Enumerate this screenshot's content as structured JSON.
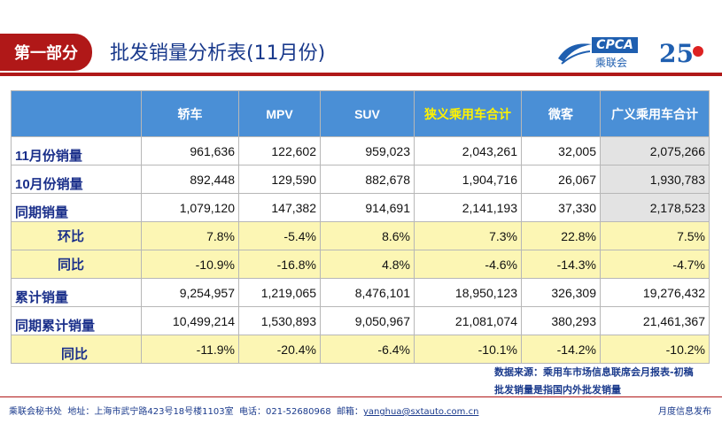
{
  "header": {
    "section": "第一部分",
    "title": "批发销量分析表(11月份)"
  },
  "logo": {
    "cpca": "CPCA",
    "cpca_sub": "乘联会",
    "anniv": "25"
  },
  "table": {
    "headers": [
      "",
      "轿车",
      "MPV",
      "SUV",
      "狭义乘用车合计",
      "微客",
      "广义乘用车合计"
    ],
    "rows": [
      {
        "label": "11月份销量",
        "cells": [
          "961,636",
          "122,602",
          "959,023",
          "2,043,261",
          "32,005",
          "2,075,266"
        ]
      },
      {
        "label": "10月份销量",
        "cells": [
          "892,448",
          "129,590",
          "882,678",
          "1,904,716",
          "26,067",
          "1,930,783"
        ]
      },
      {
        "label": "同期销量",
        "cells": [
          "1,079,120",
          "147,382",
          "914,691",
          "2,141,193",
          "37,330",
          "2,178,523"
        ]
      },
      {
        "label": "环比",
        "cells": [
          "7.8%",
          "-5.4%",
          "8.6%",
          "7.3%",
          "22.8%",
          "7.5%"
        ]
      },
      {
        "label": "同比",
        "cells": [
          "-10.9%",
          "-16.8%",
          "4.8%",
          "-4.6%",
          "-14.3%",
          "-4.7%"
        ]
      },
      {
        "label": "累计销量",
        "cells": [
          "9,254,957",
          "1,219,065",
          "8,476,101",
          "18,950,123",
          "326,309",
          "19,276,432"
        ]
      },
      {
        "label": "同期累计销量",
        "cells": [
          "10,499,214",
          "1,530,893",
          "9,050,967",
          "21,081,074",
          "380,293",
          "21,461,367"
        ]
      },
      {
        "label": "同比",
        "cells": [
          "-11.9%",
          "-20.4%",
          "-6.4%",
          "-10.1%",
          "-14.2%",
          "-10.2%"
        ]
      }
    ]
  },
  "notes": {
    "source": "数据来源：乘用车市场信息联席会月报表-初稿",
    "definition": "批发销量是指国内外批发销量"
  },
  "footer": {
    "org": "乘联会秘书处",
    "address": "地址：上海市武宁路423号18号楼1103室",
    "phone": "电话：021-52680968",
    "email_label": "邮箱：",
    "email": "yanghua@sxtauto.com.cn",
    "right": "月度信息发布"
  }
}
